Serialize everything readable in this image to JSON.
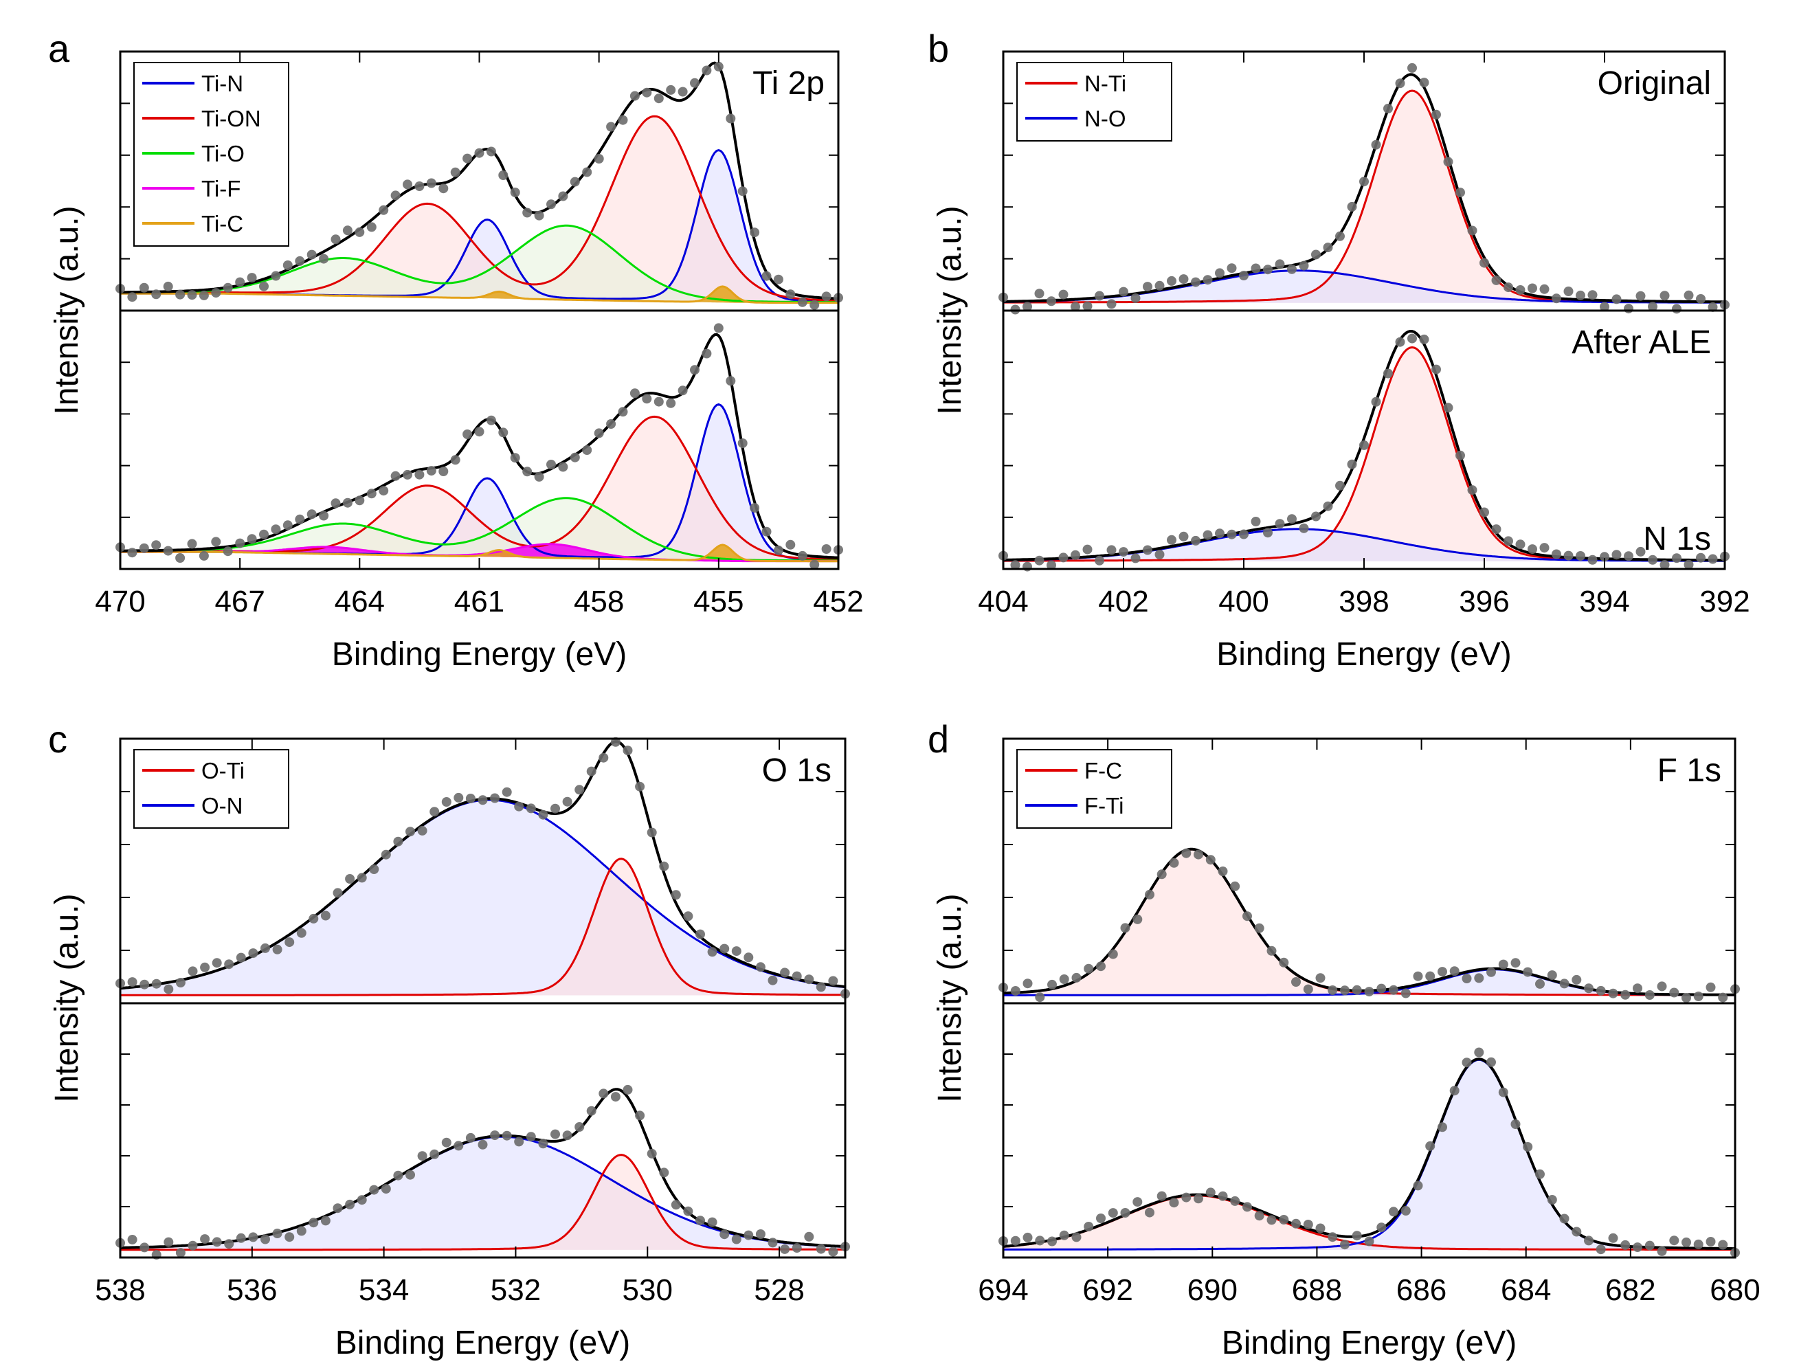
{
  "chart_data": [
    {
      "type": "line",
      "panel_letter": "a",
      "xlabel": "Binding Energy (eV)",
      "ylabel": "Intensity (a.u.)",
      "xlim": [
        470,
        452
      ],
      "xticks": [
        470,
        467,
        464,
        461,
        458,
        455,
        452
      ],
      "xtick_labels": [
        "470",
        "467",
        "464",
        "461",
        "458",
        "455",
        "452"
      ],
      "ylim": [
        0,
        1
      ],
      "legend": {
        "location": "top-left",
        "entries": [
          {
            "label": "Ti-N",
            "color": "#0000dd"
          },
          {
            "label": "Ti-ON",
            "color": "#e00000"
          },
          {
            "label": "Ti-O",
            "color": "#00dd00"
          },
          {
            "label": "Ti-F",
            "color": "#ee00ee"
          },
          {
            "label": "Ti-C",
            "color": "#e3a21a"
          }
        ]
      },
      "subplots": [
        {
          "label": "Ti 2p",
          "label_position": "top-right",
          "components": [
            {
              "name": "Ti-N",
              "color": "#0000dd",
              "fill": "#dcdcff",
              "peaks": [
                {
                  "center": 455.0,
                  "height": 0.66,
                  "fwhm": 1.3
                },
                {
                  "center": 460.8,
                  "height": 0.34,
                  "fwhm": 1.3
                }
              ]
            },
            {
              "name": "Ti-ON",
              "color": "#e00000",
              "fill": "#ffdcdc",
              "peaks": [
                {
                  "center": 456.6,
                  "height": 0.8,
                  "fwhm": 2.6
                },
                {
                  "center": 462.3,
                  "height": 0.4,
                  "fwhm": 2.6
                }
              ]
            },
            {
              "name": "Ti-O",
              "color": "#00dd00",
              "fill": "#e6f2da",
              "peaks": [
                {
                  "center": 458.8,
                  "height": 0.32,
                  "fwhm": 3.2
                },
                {
                  "center": 464.4,
                  "height": 0.16,
                  "fwhm": 3.2
                }
              ]
            },
            {
              "name": "Ti-C",
              "color": "#e3a21a",
              "fill": "#e3a21a",
              "peaks": [
                {
                  "center": 454.9,
                  "height": 0.07,
                  "fwhm": 0.6
                },
                {
                  "center": 460.5,
                  "height": 0.03,
                  "fwhm": 0.6
                }
              ]
            }
          ],
          "baseline": {
            "low": 0.0,
            "high": 0.04
          },
          "envelope_color": "#000000",
          "data_points": {
            "color": "#6b6b6b",
            "noise": 0.012
          }
        },
        {
          "label": "",
          "components": [
            {
              "name": "Ti-N",
              "color": "#0000dd",
              "fill": "#dcdcff",
              "peaks": [
                {
                  "center": 455.0,
                  "height": 0.68,
                  "fwhm": 1.3
                },
                {
                  "center": 460.8,
                  "height": 0.34,
                  "fwhm": 1.3
                }
              ]
            },
            {
              "name": "Ti-ON",
              "color": "#e00000",
              "fill": "#ffdcdc",
              "peaks": [
                {
                  "center": 456.6,
                  "height": 0.62,
                  "fwhm": 2.6
                },
                {
                  "center": 462.3,
                  "height": 0.3,
                  "fwhm": 2.6
                }
              ]
            },
            {
              "name": "Ti-O",
              "color": "#00dd00",
              "fill": "#e6f2da",
              "peaks": [
                {
                  "center": 458.8,
                  "height": 0.26,
                  "fwhm": 3.2
                },
                {
                  "center": 464.4,
                  "height": 0.13,
                  "fwhm": 3.2
                }
              ]
            },
            {
              "name": "Ti-F",
              "color": "#ee00ee",
              "fill": "#ee00ee",
              "peaks": [
                {
                  "center": 459.2,
                  "height": 0.06,
                  "fwhm": 2.2
                },
                {
                  "center": 464.8,
                  "height": 0.03,
                  "fwhm": 2.2
                }
              ]
            },
            {
              "name": "Ti-C",
              "color": "#e3a21a",
              "fill": "#e3a21a",
              "peaks": [
                {
                  "center": 454.9,
                  "height": 0.07,
                  "fwhm": 0.6
                },
                {
                  "center": 460.5,
                  "height": 0.03,
                  "fwhm": 0.6
                }
              ]
            }
          ],
          "baseline": {
            "low": 0.0,
            "high": 0.04
          },
          "envelope_color": "#000000",
          "data_points": {
            "color": "#6b6b6b",
            "noise": 0.012
          }
        }
      ]
    },
    {
      "type": "line",
      "panel_letter": "b",
      "xlabel": "Binding Energy (eV)",
      "ylabel": "Intensity (a.u.)",
      "xlim": [
        404,
        392
      ],
      "xticks": [
        404,
        402,
        400,
        398,
        396,
        394,
        392
      ],
      "xtick_labels": [
        "404",
        "402",
        "400",
        "398",
        "396",
        "394",
        "392"
      ],
      "ylim": [
        0,
        1
      ],
      "legend": {
        "location": "top-left",
        "entries": [
          {
            "label": "N-Ti",
            "color": "#e00000"
          },
          {
            "label": "N-O",
            "color": "#0000dd"
          }
        ]
      },
      "subplots": [
        {
          "label": "Original",
          "label_position": "top-right",
          "components": [
            {
              "name": "N-Ti",
              "color": "#e00000",
              "fill": "#ffdcdc",
              "peaks": [
                {
                  "center": 397.2,
                  "height": 0.92,
                  "fwhm": 1.5
                }
              ]
            },
            {
              "name": "N-O",
              "color": "#0000dd",
              "fill": "#dcdcff",
              "peaks": [
                {
                  "center": 399.1,
                  "height": 0.14,
                  "fwhm": 3.8
                }
              ]
            }
          ],
          "baseline": {
            "low": 0.0,
            "high": 0.0
          },
          "envelope_color": "#000000",
          "data_points": {
            "color": "#6b6b6b",
            "noise": 0.012
          }
        },
        {
          "label": "After ALE",
          "label_position": "top-right",
          "second_label": "N 1s",
          "second_label_position": "bottom-right",
          "components": [
            {
              "name": "N-Ti",
              "color": "#e00000",
              "fill": "#ffdcdc",
              "peaks": [
                {
                  "center": 397.2,
                  "height": 0.93,
                  "fwhm": 1.5
                }
              ]
            },
            {
              "name": "N-O",
              "color": "#0000dd",
              "fill": "#dcdcff",
              "peaks": [
                {
                  "center": 399.1,
                  "height": 0.14,
                  "fwhm": 3.8
                }
              ]
            }
          ],
          "baseline": {
            "low": 0.0,
            "high": 0.0
          },
          "envelope_color": "#000000",
          "data_points": {
            "color": "#6b6b6b",
            "noise": 0.012
          }
        }
      ]
    },
    {
      "type": "line",
      "panel_letter": "c",
      "xlabel": "Binding Energy (eV)",
      "ylabel": "Intensity (a.u.)",
      "xlim": [
        538,
        527
      ],
      "xticks": [
        538,
        536,
        534,
        532,
        530,
        528
      ],
      "xtick_labels": [
        "538",
        "536",
        "534",
        "532",
        "530",
        "528"
      ],
      "ylim": [
        0,
        1
      ],
      "legend": {
        "location": "top-left",
        "entries": [
          {
            "label": "O-Ti",
            "color": "#e00000"
          },
          {
            "label": "O-N",
            "color": "#0000dd"
          }
        ]
      },
      "subplots": [
        {
          "label": "O 1s",
          "label_position": "top-right",
          "components": [
            {
              "name": "O-N",
              "color": "#0000dd",
              "fill": "#dcdcff",
              "peaks": [
                {
                  "center": 532.4,
                  "height": 0.83,
                  "fwhm": 4.6
                }
              ]
            },
            {
              "name": "O-Ti",
              "color": "#e00000",
              "fill": "#ffdcdc",
              "peaks": [
                {
                  "center": 530.4,
                  "height": 0.58,
                  "fwhm": 1.0
                }
              ]
            }
          ],
          "baseline": {
            "low": 0.0,
            "high": 0.0
          },
          "envelope_color": "#000000",
          "data_points": {
            "color": "#6b6b6b",
            "noise": 0.012
          }
        },
        {
          "label": "",
          "components": [
            {
              "name": "O-N",
              "color": "#0000dd",
              "fill": "#dcdcff",
              "peaks": [
                {
                  "center": 532.2,
                  "height": 0.5,
                  "fwhm": 4.0
                }
              ]
            },
            {
              "name": "O-Ti",
              "color": "#e00000",
              "fill": "#ffdcdc",
              "peaks": [
                {
                  "center": 530.4,
                  "height": 0.42,
                  "fwhm": 1.0
                }
              ]
            }
          ],
          "baseline": {
            "low": 0.0,
            "high": 0.0
          },
          "envelope_color": "#000000",
          "data_points": {
            "color": "#6b6b6b",
            "noise": 0.012
          }
        }
      ]
    },
    {
      "type": "line",
      "panel_letter": "d",
      "xlabel": "Binding Energy (eV)",
      "ylabel": "Intensity (a.u.)",
      "xlim": [
        694,
        680
      ],
      "xticks": [
        694,
        692,
        690,
        688,
        686,
        684,
        682,
        680
      ],
      "xtick_labels": [
        "694",
        "692",
        "690",
        "688",
        "686",
        "684",
        "682",
        "680"
      ],
      "ylim": [
        0,
        1
      ],
      "legend": {
        "location": "top-left",
        "entries": [
          {
            "label": "F-C",
            "color": "#e00000"
          },
          {
            "label": "F-Ti",
            "color": "#0000dd"
          }
        ]
      },
      "subplots": [
        {
          "label": "F 1s",
          "label_position": "top-right",
          "components": [
            {
              "name": "F-C",
              "color": "#e00000",
              "fill": "#ffdcdc",
              "peaks": [
                {
                  "center": 690.4,
                  "height": 0.62,
                  "fwhm": 2.3
                }
              ]
            },
            {
              "name": "F-Ti",
              "color": "#0000dd",
              "fill": "#dcdcff",
              "peaks": [
                {
                  "center": 684.6,
                  "height": 0.11,
                  "fwhm": 2.4
                }
              ]
            }
          ],
          "baseline": {
            "low": 0.0,
            "high": 0.0
          },
          "envelope_color": "#000000",
          "data_points": {
            "color": "#6b6b6b",
            "noise": 0.012
          }
        },
        {
          "label": "",
          "components": [
            {
              "name": "F-C",
              "color": "#e00000",
              "fill": "#ffdcdc",
              "peaks": [
                {
                  "center": 690.3,
                  "height": 0.24,
                  "fwhm": 3.4
                }
              ]
            },
            {
              "name": "F-Ti",
              "color": "#0000dd",
              "fill": "#dcdcff",
              "peaks": [
                {
                  "center": 684.9,
                  "height": 0.84,
                  "fwhm": 1.9
                }
              ]
            }
          ],
          "baseline": {
            "low": 0.0,
            "high": 0.0
          },
          "envelope_color": "#000000",
          "data_points": {
            "color": "#6b6b6b",
            "noise": 0.012
          }
        }
      ]
    }
  ]
}
